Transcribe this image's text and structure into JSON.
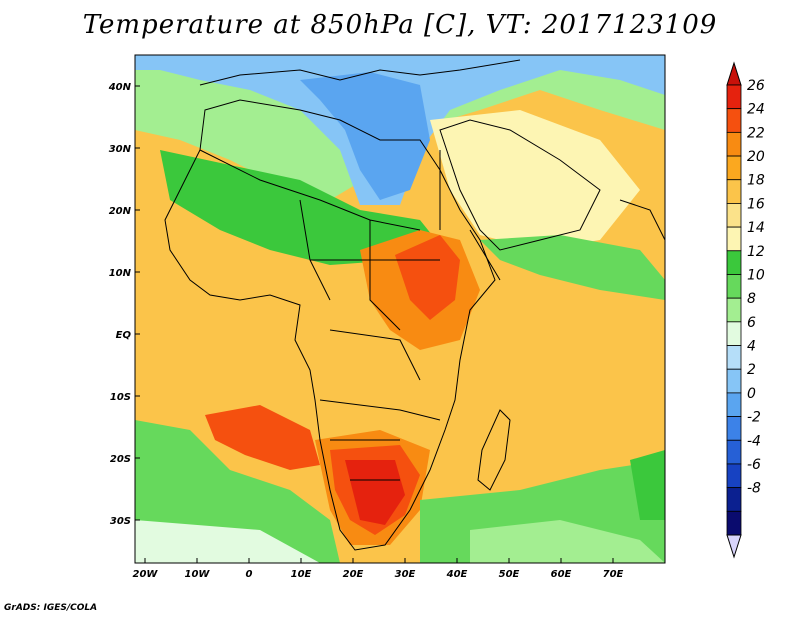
{
  "title": "Temperature at 850hPa [C], VT: 2017123109",
  "credit": "GrADS: IGES/COLA",
  "lat_labels": [
    "40N",
    "30N",
    "20N",
    "10N",
    "EQ",
    "10S",
    "20S",
    "30S"
  ],
  "lon_labels": [
    "20W",
    "10W",
    "0",
    "10E",
    "20E",
    "30E",
    "40E",
    "50E",
    "60E",
    "70E"
  ],
  "colorbar": {
    "labels": [
      "26",
      "24",
      "22",
      "20",
      "18",
      "16",
      "14",
      "12",
      "10",
      "8",
      "6",
      "4",
      "2",
      "0",
      "-2",
      "-4",
      "-6",
      "-8"
    ],
    "colors": [
      "#e5220e",
      "#f5500f",
      "#f88b12",
      "#fba81f",
      "#fbc44a",
      "#fbe28a",
      "#fdf5b3",
      "#3bc83c",
      "#66d95c",
      "#a3ee91",
      "#e2fbe0",
      "#b5def9",
      "#86c5f6",
      "#5aa5f0",
      "#3c82e8",
      "#2660d6",
      "#1742c2",
      "#0b2090",
      "#0a0b6e"
    ],
    "top_arrow_color": "#c8110a",
    "bottom_arrow_color": "#d8d4fb"
  },
  "map": {
    "ocean_colors": {
      "cold": "#6aacf2",
      "cool": "#8fd08a",
      "mild": "#3bc83c",
      "warm": "#fbc44a"
    },
    "land_colors": {
      "hot": "#e5220e",
      "warm": "#f88b12",
      "mild": "#fba81f",
      "cool": "#66d95c",
      "cold": "#5aa5f0"
    }
  }
}
